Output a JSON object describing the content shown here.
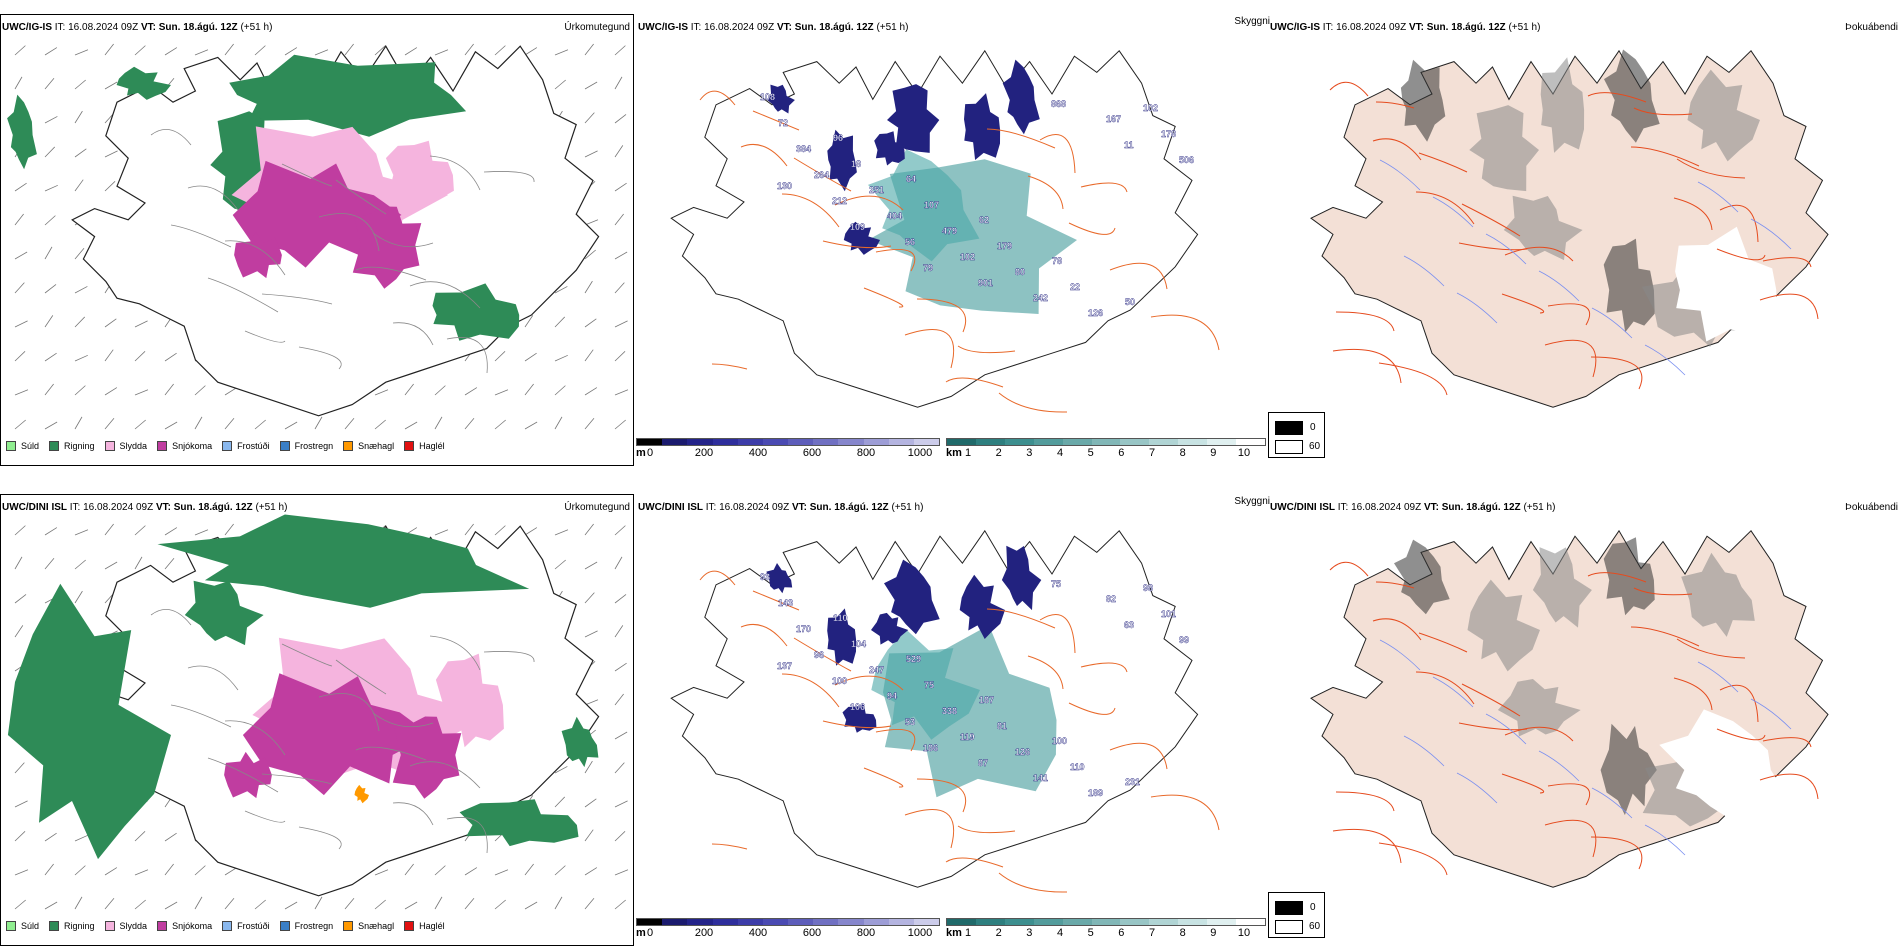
{
  "colors": {
    "sudd": "#90ee90",
    "rigning": "#2e8b57",
    "slydda": "#f5b4de",
    "snjokoma": "#c03da0",
    "frostudi": "#8ab8ee",
    "frostregn": "#3a7fc7",
    "snaehagl": "#ff9900",
    "haglel": "#e11",
    "land": "#f3e0d6",
    "roads": "#e8692a",
    "ceiling": "#2f8f8f"
  },
  "rows": [
    {
      "model": "UWC/IG-IS",
      "it_label": "IT:",
      "it_value": "16.08.2024 09Z",
      "vt_label": "VT:",
      "vt_value": "Sun. 18.ágú. 12Z",
      "lead": "(+51 h)",
      "precip_title": "Úrkomutegund",
      "cloud_title": "Skyggni",
      "fog_title": "Þokuábendi",
      "cloud_labels": [
        "108",
        "96",
        "64",
        "62",
        "78",
        "50",
        "72",
        "18",
        "107",
        "179",
        "22",
        "102",
        "384",
        "251",
        "479",
        "80",
        "126",
        "178",
        "264",
        "404",
        "102",
        "242",
        "167",
        "506",
        "212",
        "56",
        "901",
        "868",
        "11",
        "130",
        "109",
        "79"
      ]
    },
    {
      "model": "UWC/DINI ISL",
      "it_label": "IT:",
      "it_value": "16.08.2024 09Z",
      "vt_label": "VT:",
      "vt_value": "Sun. 18.ágú. 12Z",
      "lead": "(+51 h)",
      "precip_title": "Úrkomutegund",
      "cloud_title": "Skyggni",
      "fog_title": "Þokuábendi",
      "cloud_labels": [
        "93",
        "110",
        "529",
        "187",
        "100",
        "231",
        "143",
        "104",
        "75",
        "81",
        "110",
        "98",
        "170",
        "247",
        "338",
        "126",
        "189",
        "101",
        "96",
        "94",
        "119",
        "141",
        "82",
        "99",
        "100",
        "53",
        "87",
        "75",
        "63",
        "137",
        "106",
        "186"
      ]
    }
  ],
  "precip_legend": [
    {
      "label": "Súld",
      "color": "#90ee90"
    },
    {
      "label": "Rigning",
      "color": "#2e8b57"
    },
    {
      "label": "Slydda",
      "color": "#f5b4de"
    },
    {
      "label": "Snjókoma",
      "color": "#c03da0"
    },
    {
      "label": "Frostúði",
      "color": "#8ab8ee"
    },
    {
      "label": "Frostregn",
      "color": "#3a7fc7"
    },
    {
      "label": "Snæhagl",
      "color": "#ff9900"
    },
    {
      "label": "Haglél",
      "color": "#e11111"
    }
  ],
  "ceiling_bar": {
    "unit": "m",
    "ticks": [
      "0",
      "200",
      "400",
      "600",
      "800",
      "1000"
    ],
    "colors": [
      "#000000",
      "#1a1a6e",
      "#232389",
      "#2e2e9c",
      "#3c3ca8",
      "#4a4ab2",
      "#5d5dba",
      "#7070c2",
      "#8686cc",
      "#9d9dd6",
      "#b4b4e0",
      "#ccccea"
    ]
  },
  "vis_bar": {
    "unit": "km",
    "ticks": [
      "1",
      "2",
      "3",
      "4",
      "5",
      "6",
      "7",
      "8",
      "9",
      "10"
    ],
    "colors": [
      "#206a6a",
      "#2e7f7f",
      "#3d8f8f",
      "#539c9c",
      "#6aa9a9",
      "#81b7b7",
      "#98c5c5",
      "#b0d4d4",
      "#c8e3e3",
      "#e0f0f0",
      "#ffffff"
    ]
  },
  "fog_legend": {
    "black": "0",
    "white": "60"
  }
}
